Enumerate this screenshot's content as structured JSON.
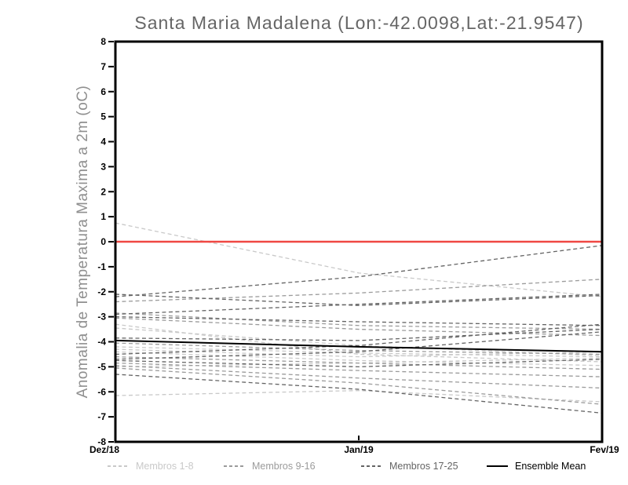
{
  "header": {
    "title": "Santa Maria Madalena (Lon:-42.0098,Lat:-21.9547)"
  },
  "legend": {
    "items": [
      {
        "label": "Membros 1-8",
        "color": "#c9c9c9",
        "style": "dashed"
      },
      {
        "label": "Membros 9-16",
        "color": "#9b9b9b",
        "style": "dashed"
      },
      {
        "label": "Membros 17-25",
        "color": "#646464",
        "style": "dashed"
      },
      {
        "label": "Ensemble Mean",
        "color": "#000000",
        "style": "solid"
      }
    ]
  },
  "chart_data": {
    "type": "line",
    "title": "Santa Maria Madalena (Lon:-42.0098,Lat:-21.9547)",
    "xlabel": "",
    "ylabel": "Anomalia de Temperatura Maxima a 2m (oC)",
    "x_tick_labels": [
      "Dez/18",
      "Jan/19",
      "Fev/19"
    ],
    "y_ticks": [
      8,
      7,
      6,
      5,
      4,
      3,
      2,
      1,
      0,
      -1,
      -2,
      -3,
      -4,
      -5,
      -6,
      -7,
      -8
    ],
    "ylim": [
      -8,
      8
    ],
    "grid": false,
    "legend_position": "bottom",
    "frame_color": "#000000",
    "tick_label_color": "#000000",
    "zero_line": {
      "value": 0,
      "color": "#f04843"
    },
    "groups": [
      {
        "name": "Membros 1-8",
        "color": "#c9c9c9",
        "line_style": "dashed"
      },
      {
        "name": "Membros 9-16",
        "color": "#9b9b9b",
        "line_style": "dashed"
      },
      {
        "name": "Membros 17-25",
        "color": "#646464",
        "line_style": "dashed"
      }
    ],
    "members": [
      {
        "name": "m1",
        "group": 0,
        "values": [
          0.75,
          -1.25,
          -2.2
        ]
      },
      {
        "name": "m2",
        "group": 0,
        "values": [
          -3.3,
          -4.5,
          -4.8
        ]
      },
      {
        "name": "m3",
        "group": 0,
        "values": [
          -3.45,
          -4.15,
          -4.55
        ]
      },
      {
        "name": "m4",
        "group": 0,
        "values": [
          -4.2,
          -4.45,
          -4.6
        ]
      },
      {
        "name": "m5",
        "group": 0,
        "values": [
          -4.4,
          -4.75,
          -4.95
        ]
      },
      {
        "name": "m6",
        "group": 0,
        "values": [
          -4.3,
          -4.6,
          -4.4
        ]
      },
      {
        "name": "m7",
        "group": 0,
        "values": [
          -5.0,
          -4.85,
          -4.65
        ]
      },
      {
        "name": "m8",
        "group": 0,
        "values": [
          -6.15,
          -5.95,
          -6.4
        ]
      },
      {
        "name": "m9",
        "group": 1,
        "values": [
          -2.4,
          -2.05,
          -1.5
        ]
      },
      {
        "name": "m10",
        "group": 1,
        "values": [
          -2.85,
          -3.35,
          -3.5
        ]
      },
      {
        "name": "m11",
        "group": 1,
        "values": [
          -3.05,
          -3.5,
          -3.75
        ]
      },
      {
        "name": "m12",
        "group": 1,
        "values": [
          -4.05,
          -4.35,
          -4.5
        ]
      },
      {
        "name": "m13",
        "group": 1,
        "values": [
          -4.85,
          -5.15,
          -5.4
        ]
      },
      {
        "name": "m14",
        "group": 1,
        "values": [
          -4.95,
          -5.45,
          -5.85
        ]
      },
      {
        "name": "m15",
        "group": 1,
        "values": [
          -5.05,
          -5.65,
          -6.5
        ]
      },
      {
        "name": "m16",
        "group": 1,
        "values": [
          -4.6,
          -4.85,
          -5.1
        ]
      },
      {
        "name": "m17",
        "group": 2,
        "values": [
          -2.2,
          -1.4,
          -0.15
        ]
      },
      {
        "name": "m18",
        "group": 2,
        "values": [
          -2.1,
          -2.55,
          -2.15
        ]
      },
      {
        "name": "m19",
        "group": 2,
        "values": [
          -2.9,
          -2.5,
          -2.1
        ]
      },
      {
        "name": "m20",
        "group": 2,
        "values": [
          -3.0,
          -3.2,
          -3.35
        ]
      },
      {
        "name": "m21",
        "group": 2,
        "values": [
          -3.85,
          -3.95,
          -3.5
        ]
      },
      {
        "name": "m22",
        "group": 2,
        "values": [
          -4.5,
          -4.15,
          -3.3
        ]
      },
      {
        "name": "m23",
        "group": 2,
        "values": [
          -4.7,
          -4.4,
          -3.6
        ]
      },
      {
        "name": "m24",
        "group": 2,
        "values": [
          -4.75,
          -5.0,
          -4.7
        ]
      },
      {
        "name": "m25",
        "group": 2,
        "values": [
          -5.3,
          -5.9,
          -6.85
        ]
      }
    ],
    "mean": {
      "name": "Ensemble Mean",
      "color": "#000000",
      "line_style": "solid",
      "values": [
        -3.95,
        -4.2,
        -4.4
      ]
    }
  }
}
